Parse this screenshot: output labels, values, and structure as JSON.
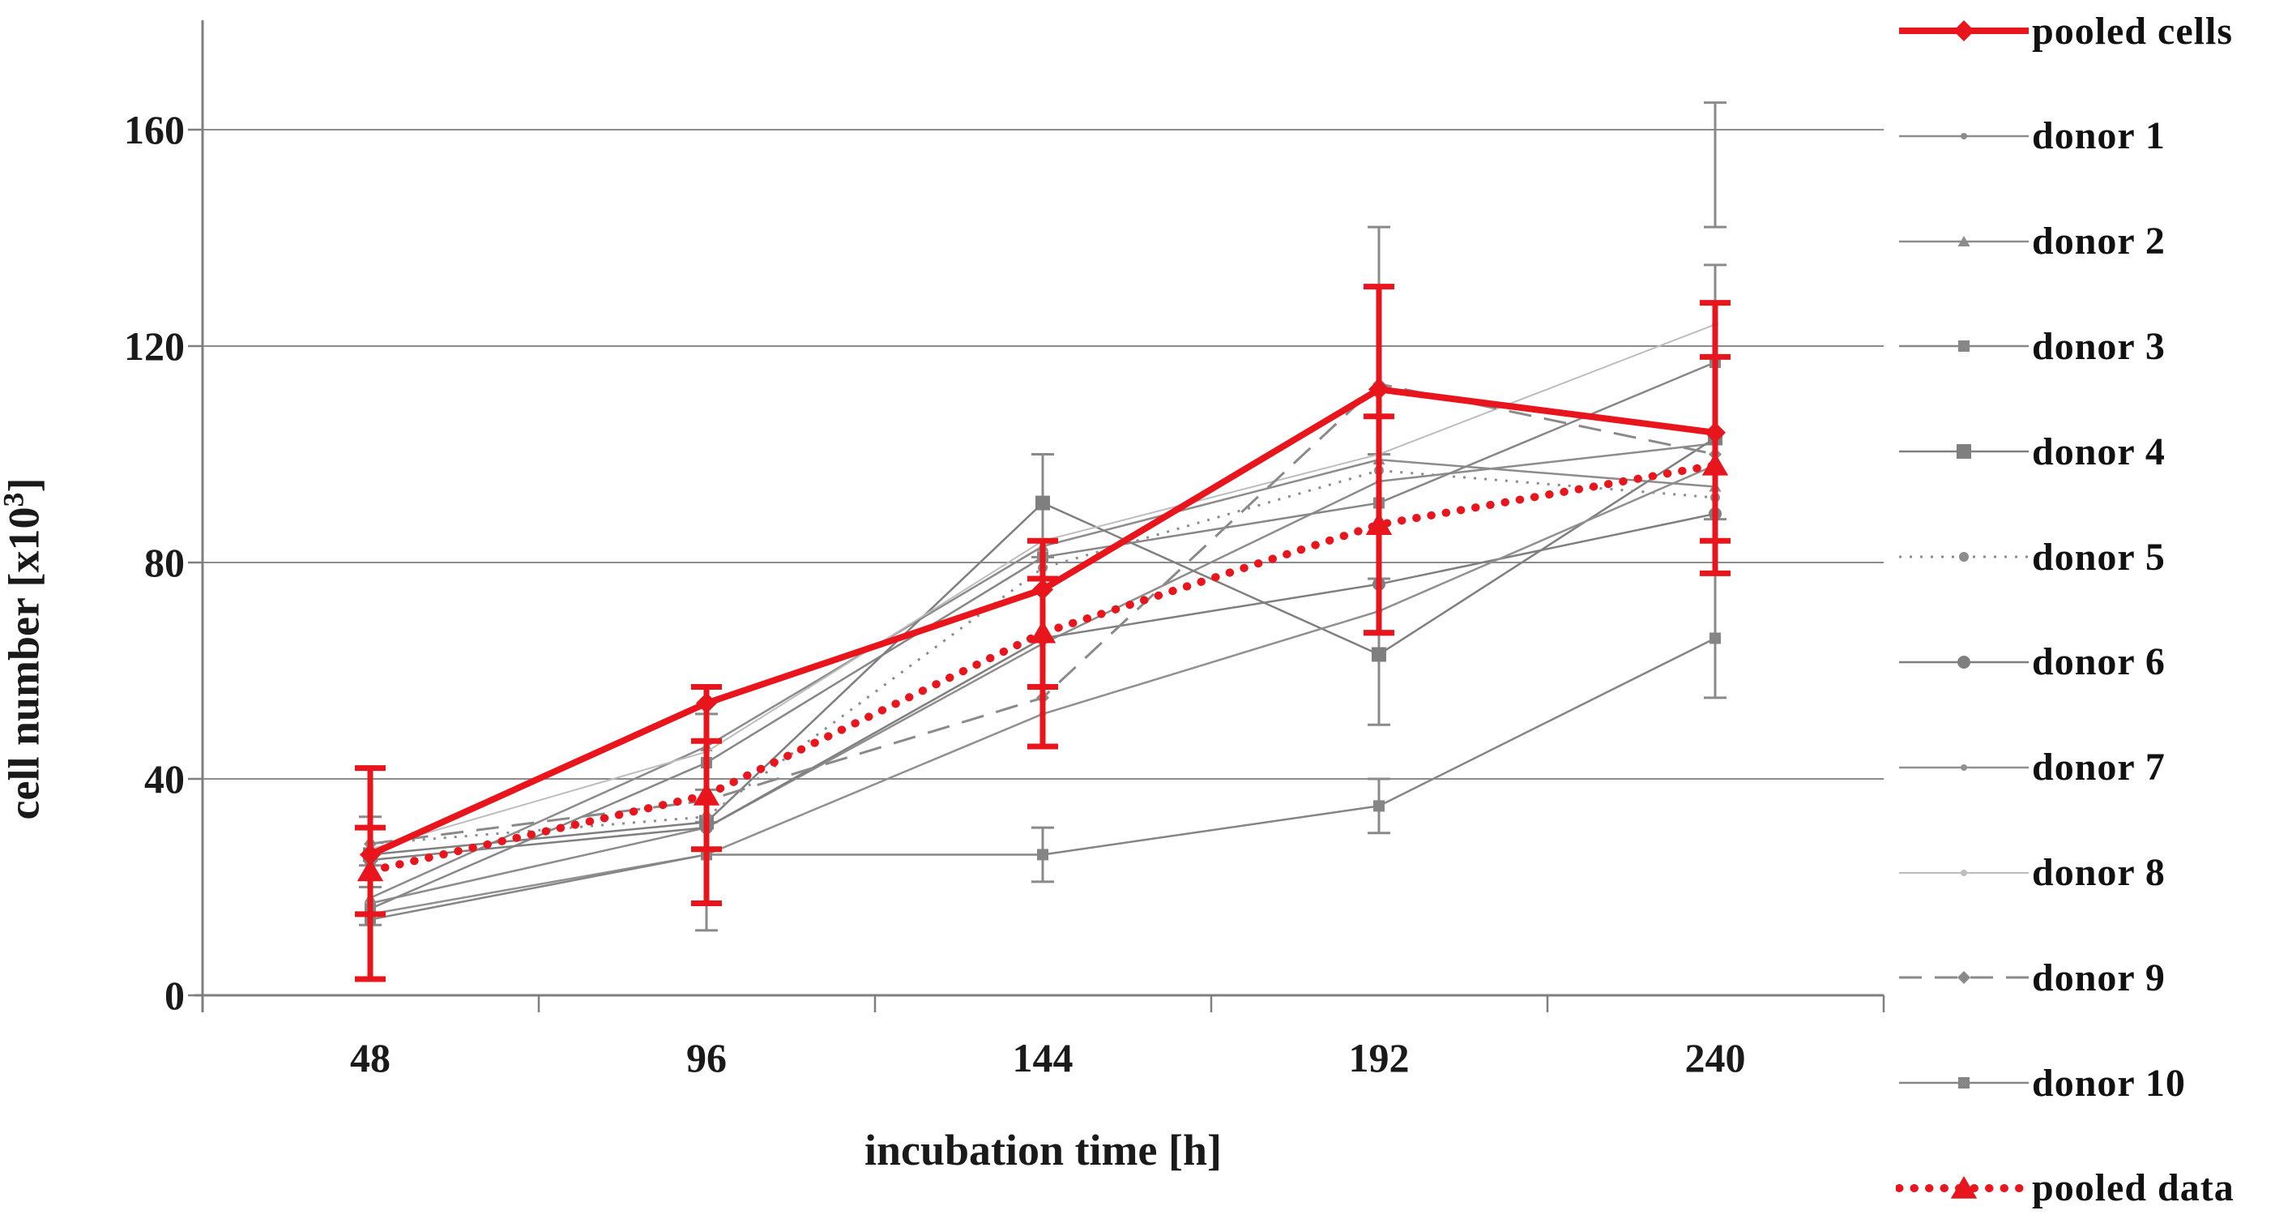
{
  "page": {
    "background": "#ffffff"
  },
  "chart_data": {
    "type": "line",
    "title": "",
    "xlabel": "incubation time [h]",
    "ylabel": "cell number [x10³]",
    "ylabel_parts": {
      "base": "cell number [x10",
      "sup": "3",
      "end": "]"
    },
    "x": [
      48,
      96,
      144,
      192,
      240
    ],
    "yticks": [
      0,
      40,
      80,
      120,
      160
    ],
    "ylim": [
      0,
      180
    ],
    "grid": true,
    "legend_position": "right",
    "colors": {
      "red": "#e8151d",
      "gray": "#8a8a8a",
      "grid": "#8c8c8c",
      "axis": "#7f7f7f",
      "text": "#1a1a1a"
    },
    "series": [
      {
        "name": "pooled cells",
        "color": "#e8151d",
        "width": 8,
        "dash": "solid",
        "marker": "diamond",
        "marker_size": 13,
        "values": [
          26,
          54,
          75,
          112,
          104
        ]
      },
      {
        "name": "donor 1",
        "color": "#8c8c8c",
        "width": 2.5,
        "dash": "solid",
        "marker": "dot",
        "marker_size": 4,
        "values": [
          17,
          31,
          65,
          95,
          102
        ]
      },
      {
        "name": "donor 2",
        "color": "#8c8c8c",
        "width": 2.5,
        "dash": "solid",
        "marker": "triangle",
        "marker_size": 7,
        "values": [
          18,
          46,
          83,
          99,
          94
        ]
      },
      {
        "name": "donor 3",
        "color": "#878787",
        "width": 2.5,
        "dash": "solid",
        "marker": "square",
        "marker_size": 7,
        "values": [
          16,
          43,
          81,
          91,
          117
        ]
      },
      {
        "name": "donor 4",
        "color": "#7f7f7f",
        "width": 2.5,
        "dash": "solid",
        "marker": "square",
        "marker_size": 9,
        "values": [
          26,
          32,
          91,
          63,
          103
        ]
      },
      {
        "name": "donor 5",
        "color": "#8c8c8c",
        "width": 3,
        "dash": "dotted",
        "marker": "circle",
        "marker_size": 6,
        "values": [
          28,
          33,
          79,
          97,
          92
        ]
      },
      {
        "name": "donor 6",
        "color": "#7f7f7f",
        "width": 2.5,
        "dash": "solid",
        "marker": "circle",
        "marker_size": 8,
        "values": [
          25,
          31,
          66,
          76,
          89
        ]
      },
      {
        "name": "donor 7",
        "color": "#909090",
        "width": 2.5,
        "dash": "solid",
        "marker": "dot",
        "marker_size": 4,
        "values": [
          15,
          26,
          52,
          71,
          98
        ]
      },
      {
        "name": "donor 8",
        "color": "#bdbdbd",
        "width": 2,
        "dash": "solid",
        "marker": "dot",
        "marker_size": 4,
        "values": [
          27,
          45,
          84,
          100,
          124
        ]
      },
      {
        "name": "donor 9",
        "color": "#8a8a8a",
        "width": 3,
        "dash": "dashed",
        "marker": "diamond",
        "marker_size": 8,
        "values": [
          28,
          36,
          55,
          113,
          100
        ]
      },
      {
        "name": "donor 10",
        "color": "#858585",
        "width": 2.5,
        "dash": "solid",
        "marker": "square",
        "marker_size": 7,
        "values": [
          14,
          26,
          26,
          35,
          66
        ]
      },
      {
        "name": "pooled data",
        "color": "#e8151d",
        "width": 10,
        "dash": "dot-large",
        "marker": "triangle",
        "marker_size": 15,
        "values": [
          23,
          37,
          67,
          87,
          98
        ]
      }
    ],
    "error_bars": [
      {
        "x": 48,
        "y1": 3,
        "y2": 42,
        "color": "red"
      },
      {
        "x": 48,
        "y1": 15,
        "y2": 31,
        "color": "red"
      },
      {
        "x": 96,
        "y1": 17,
        "y2": 57,
        "color": "red"
      },
      {
        "x": 96,
        "y1": 27,
        "y2": 47,
        "color": "red"
      },
      {
        "x": 144,
        "y1": 46,
        "y2": 84,
        "color": "red"
      },
      {
        "x": 144,
        "y1": 57,
        "y2": 77,
        "color": "red"
      },
      {
        "x": 192,
        "y1": 67,
        "y2": 131,
        "color": "red"
      },
      {
        "x": 192,
        "y1": 67,
        "y2": 107,
        "color": "red"
      },
      {
        "x": 240,
        "y1": 78,
        "y2": 128,
        "color": "red"
      },
      {
        "x": 240,
        "y1": 84,
        "y2": 118,
        "color": "red"
      },
      {
        "x": 48,
        "y1": 13,
        "y2": 20,
        "color": "gray"
      },
      {
        "x": 48,
        "y1": 24,
        "y2": 33,
        "color": "gray"
      },
      {
        "x": 96,
        "y1": 12,
        "y2": 32,
        "color": "gray"
      },
      {
        "x": 96,
        "y1": 38,
        "y2": 52,
        "color": "gray"
      },
      {
        "x": 144,
        "y1": 81,
        "y2": 100,
        "color": "gray"
      },
      {
        "x": 144,
        "y1": 21,
        "y2": 31,
        "color": "gray"
      },
      {
        "x": 192,
        "y1": 30,
        "y2": 40,
        "color": "gray"
      },
      {
        "x": 192,
        "y1": 50,
        "y2": 77,
        "color": "gray"
      },
      {
        "x": 192,
        "y1": 100,
        "y2": 142,
        "color": "gray"
      },
      {
        "x": 240,
        "y1": 142,
        "y2": 165,
        "color": "gray"
      },
      {
        "x": 240,
        "y1": 88,
        "y2": 135,
        "color": "gray"
      },
      {
        "x": 240,
        "y1": 55,
        "y2": 78,
        "color": "gray"
      }
    ]
  }
}
